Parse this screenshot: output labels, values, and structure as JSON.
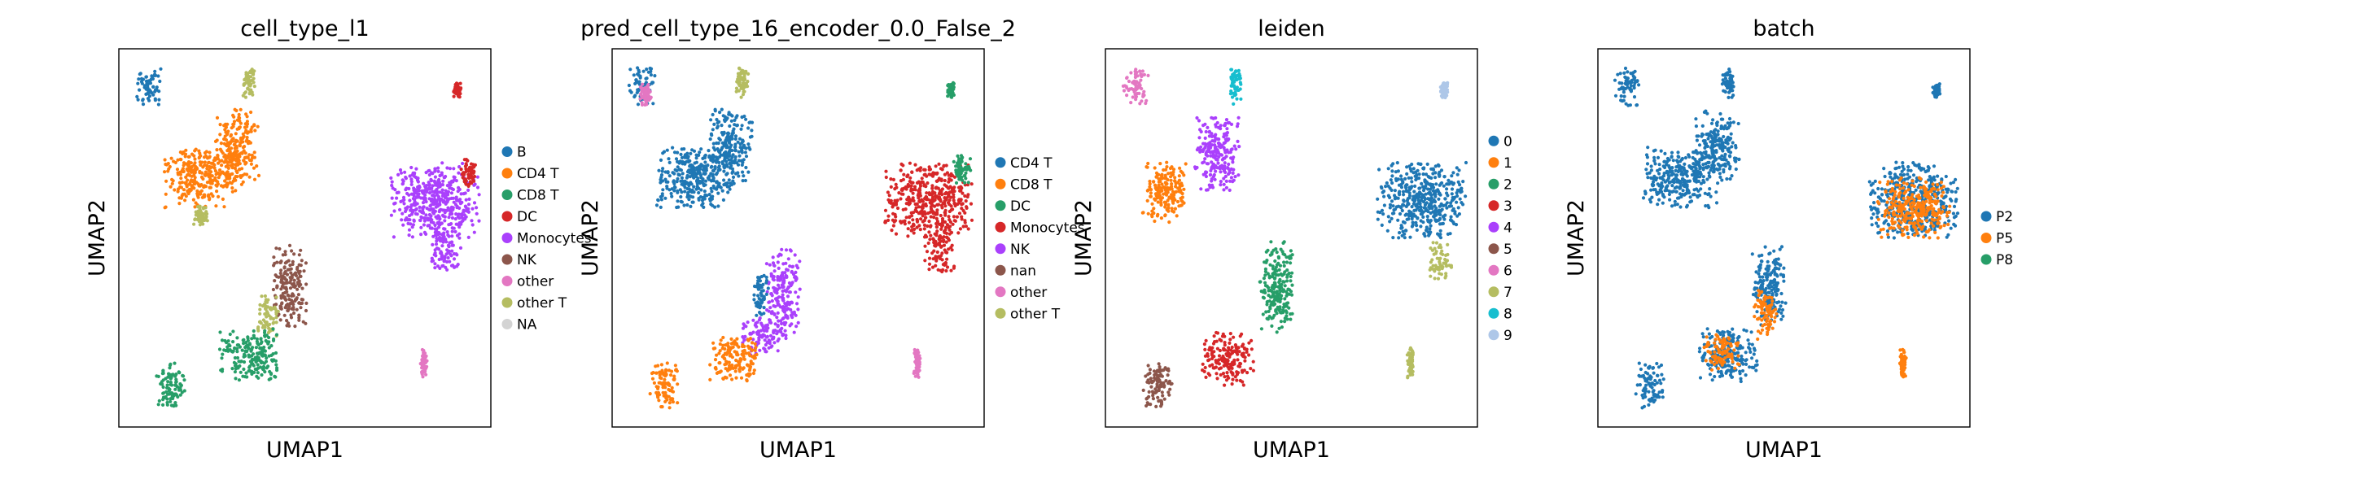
{
  "chart_data": [
    {
      "type": "scatter",
      "title": "cell_type_l1",
      "xlabel": "UMAP1",
      "ylabel": "UMAP2",
      "legend_position": "right",
      "series": [
        {
          "name": "B",
          "color": "#1f77b4"
        },
        {
          "name": "CD4 T",
          "color": "#ff7f0e"
        },
        {
          "name": "CD8 T",
          "color": "#279e68"
        },
        {
          "name": "DC",
          "color": "#d62728"
        },
        {
          "name": "Monocytes",
          "color": "#aa40fc"
        },
        {
          "name": "NK",
          "color": "#8c564b"
        },
        {
          "name": "other",
          "color": "#e377c2"
        },
        {
          "name": "other T",
          "color": "#b5bd61"
        },
        {
          "name": "NA",
          "color": "#d3d3d3"
        }
      ],
      "clusters": [
        {
          "name": "B",
          "x": 0.08,
          "y": 0.9,
          "rx": 0.035,
          "ry": 0.05
        },
        {
          "name": "other T",
          "x": 0.35,
          "y": 0.91,
          "rx": 0.016,
          "ry": 0.04
        },
        {
          "name": "CD4 T",
          "x": 0.22,
          "y": 0.66,
          "rx": 0.1,
          "ry": 0.08
        },
        {
          "name": "CD4 T",
          "x": 0.32,
          "y": 0.74,
          "rx": 0.06,
          "ry": 0.1
        },
        {
          "name": "other T",
          "x": 0.22,
          "y": 0.56,
          "rx": 0.02,
          "ry": 0.03
        },
        {
          "name": "DC",
          "x": 0.91,
          "y": 0.89,
          "rx": 0.01,
          "ry": 0.02
        },
        {
          "name": "Monocytes",
          "x": 0.85,
          "y": 0.6,
          "rx": 0.12,
          "ry": 0.1
        },
        {
          "name": "Monocytes",
          "x": 0.88,
          "y": 0.47,
          "rx": 0.04,
          "ry": 0.06
        },
        {
          "name": "DC",
          "x": 0.94,
          "y": 0.67,
          "rx": 0.02,
          "ry": 0.04
        },
        {
          "name": "NK",
          "x": 0.46,
          "y": 0.37,
          "rx": 0.045,
          "ry": 0.11
        },
        {
          "name": "other T",
          "x": 0.4,
          "y": 0.3,
          "rx": 0.03,
          "ry": 0.06
        },
        {
          "name": "CD8 T",
          "x": 0.35,
          "y": 0.19,
          "rx": 0.08,
          "ry": 0.07
        },
        {
          "name": "CD8 T",
          "x": 0.14,
          "y": 0.11,
          "rx": 0.04,
          "ry": 0.06
        },
        {
          "name": "other",
          "x": 0.82,
          "y": 0.17,
          "rx": 0.009,
          "ry": 0.04
        }
      ]
    },
    {
      "type": "scatter",
      "title": "pred_cell_type_16_encoder_0.0_False_2",
      "xlabel": "UMAP1",
      "ylabel": "UMAP2",
      "legend_position": "right",
      "series": [
        {
          "name": "CD4 T",
          "color": "#1f77b4"
        },
        {
          "name": "CD8 T",
          "color": "#ff7f0e"
        },
        {
          "name": "DC",
          "color": "#279e68"
        },
        {
          "name": "Monocytes",
          "color": "#d62728"
        },
        {
          "name": "NK",
          "color": "#aa40fc"
        },
        {
          "name": "nan",
          "color": "#8c564b"
        },
        {
          "name": "other",
          "color": "#e377c2"
        },
        {
          "name": "other T",
          "color": "#b5bd61"
        }
      ],
      "clusters": [
        {
          "name": "CD4 T",
          "x": 0.08,
          "y": 0.9,
          "rx": 0.035,
          "ry": 0.05
        },
        {
          "name": "other",
          "x": 0.09,
          "y": 0.88,
          "rx": 0.015,
          "ry": 0.03
        },
        {
          "name": "other T",
          "x": 0.35,
          "y": 0.91,
          "rx": 0.016,
          "ry": 0.04
        },
        {
          "name": "CD4 T",
          "x": 0.22,
          "y": 0.66,
          "rx": 0.1,
          "ry": 0.08
        },
        {
          "name": "CD4 T",
          "x": 0.32,
          "y": 0.74,
          "rx": 0.06,
          "ry": 0.1
        },
        {
          "name": "DC",
          "x": 0.91,
          "y": 0.89,
          "rx": 0.01,
          "ry": 0.02
        },
        {
          "name": "Monocytes",
          "x": 0.85,
          "y": 0.6,
          "rx": 0.12,
          "ry": 0.1
        },
        {
          "name": "Monocytes",
          "x": 0.88,
          "y": 0.47,
          "rx": 0.04,
          "ry": 0.06
        },
        {
          "name": "DC",
          "x": 0.94,
          "y": 0.68,
          "rx": 0.025,
          "ry": 0.04
        },
        {
          "name": "NK",
          "x": 0.46,
          "y": 0.35,
          "rx": 0.045,
          "ry": 0.12
        },
        {
          "name": "CD4 T",
          "x": 0.4,
          "y": 0.35,
          "rx": 0.02,
          "ry": 0.06
        },
        {
          "name": "NK",
          "x": 0.4,
          "y": 0.24,
          "rx": 0.05,
          "ry": 0.05
        },
        {
          "name": "CD8 T",
          "x": 0.33,
          "y": 0.18,
          "rx": 0.07,
          "ry": 0.06
        },
        {
          "name": "CD8 T",
          "x": 0.14,
          "y": 0.11,
          "rx": 0.04,
          "ry": 0.06
        },
        {
          "name": "other",
          "x": 0.82,
          "y": 0.17,
          "rx": 0.009,
          "ry": 0.04
        }
      ]
    },
    {
      "type": "scatter",
      "title": "leiden",
      "xlabel": "UMAP1",
      "ylabel": "UMAP2",
      "legend_position": "right",
      "series": [
        {
          "name": "0",
          "color": "#1f77b4"
        },
        {
          "name": "1",
          "color": "#ff7f0e"
        },
        {
          "name": "2",
          "color": "#279e68"
        },
        {
          "name": "3",
          "color": "#d62728"
        },
        {
          "name": "4",
          "color": "#aa40fc"
        },
        {
          "name": "5",
          "color": "#8c564b"
        },
        {
          "name": "6",
          "color": "#e377c2"
        },
        {
          "name": "7",
          "color": "#b5bd61"
        },
        {
          "name": "8",
          "color": "#17becf"
        },
        {
          "name": "9",
          "color": "#aec7e8"
        }
      ],
      "clusters": [
        {
          "name": "6",
          "x": 0.08,
          "y": 0.9,
          "rx": 0.035,
          "ry": 0.05
        },
        {
          "name": "8",
          "x": 0.35,
          "y": 0.9,
          "rx": 0.016,
          "ry": 0.05
        },
        {
          "name": "1",
          "x": 0.16,
          "y": 0.62,
          "rx": 0.06,
          "ry": 0.08
        },
        {
          "name": "4",
          "x": 0.3,
          "y": 0.72,
          "rx": 0.06,
          "ry": 0.1
        },
        {
          "name": "9",
          "x": 0.91,
          "y": 0.89,
          "rx": 0.01,
          "ry": 0.02
        },
        {
          "name": "0",
          "x": 0.85,
          "y": 0.6,
          "rx": 0.12,
          "ry": 0.1
        },
        {
          "name": "7",
          "x": 0.9,
          "y": 0.44,
          "rx": 0.03,
          "ry": 0.05
        },
        {
          "name": "2",
          "x": 0.46,
          "y": 0.37,
          "rx": 0.045,
          "ry": 0.12
        },
        {
          "name": "3",
          "x": 0.33,
          "y": 0.18,
          "rx": 0.07,
          "ry": 0.07
        },
        {
          "name": "5",
          "x": 0.14,
          "y": 0.11,
          "rx": 0.04,
          "ry": 0.06
        },
        {
          "name": "7",
          "x": 0.82,
          "y": 0.17,
          "rx": 0.009,
          "ry": 0.04
        }
      ]
    },
    {
      "type": "scatter",
      "title": "batch",
      "xlabel": "UMAP1",
      "ylabel": "UMAP2",
      "legend_position": "right",
      "series": [
        {
          "name": "P2",
          "color": "#1f77b4"
        },
        {
          "name": "P5",
          "color": "#ff7f0e"
        },
        {
          "name": "P8",
          "color": "#279e68"
        }
      ],
      "clusters": [
        {
          "name": "P2",
          "x": 0.08,
          "y": 0.9,
          "rx": 0.035,
          "ry": 0.05
        },
        {
          "name": "P2",
          "x": 0.35,
          "y": 0.91,
          "rx": 0.016,
          "ry": 0.04
        },
        {
          "name": "P2",
          "x": 0.22,
          "y": 0.66,
          "rx": 0.1,
          "ry": 0.08
        },
        {
          "name": "P2",
          "x": 0.32,
          "y": 0.74,
          "rx": 0.06,
          "ry": 0.1
        },
        {
          "name": "P2",
          "x": 0.91,
          "y": 0.89,
          "rx": 0.01,
          "ry": 0.02
        },
        {
          "name": "P2",
          "x": 0.85,
          "y": 0.6,
          "rx": 0.12,
          "ry": 0.1
        },
        {
          "name": "P5",
          "x": 0.85,
          "y": 0.58,
          "rx": 0.1,
          "ry": 0.08
        },
        {
          "name": "P2",
          "x": 0.46,
          "y": 0.37,
          "rx": 0.045,
          "ry": 0.11
        },
        {
          "name": "P5",
          "x": 0.45,
          "y": 0.3,
          "rx": 0.03,
          "ry": 0.07
        },
        {
          "name": "P2",
          "x": 0.35,
          "y": 0.19,
          "rx": 0.08,
          "ry": 0.07
        },
        {
          "name": "P5",
          "x": 0.33,
          "y": 0.2,
          "rx": 0.05,
          "ry": 0.05
        },
        {
          "name": "P2",
          "x": 0.14,
          "y": 0.11,
          "rx": 0.04,
          "ry": 0.06
        },
        {
          "name": "P5",
          "x": 0.82,
          "y": 0.17,
          "rx": 0.009,
          "ry": 0.04
        }
      ]
    }
  ]
}
